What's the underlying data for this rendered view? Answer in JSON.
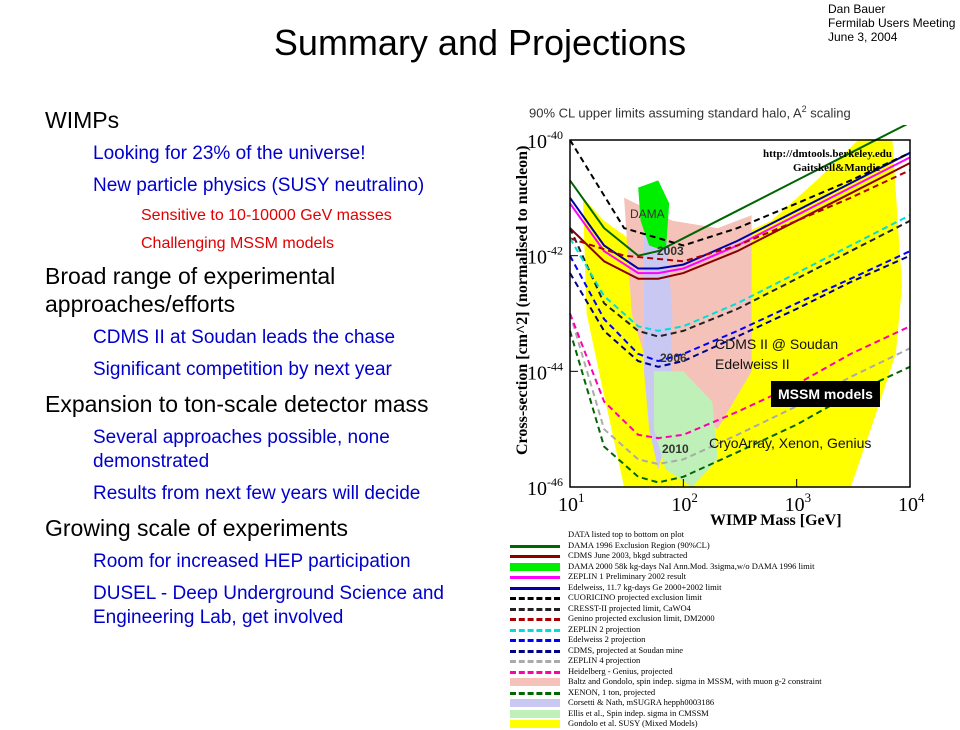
{
  "corner": {
    "author": "Dan Bauer",
    "meeting": "Fermilab Users Meeting",
    "date": "June 3, 2004"
  },
  "slide_title": "Summary and Projections",
  "bullets": [
    {
      "level": 1,
      "text": "WIMPs"
    },
    {
      "level": 2,
      "text": "Looking for 23% of the universe!"
    },
    {
      "level": 2,
      "text": "New particle physics (SUSY neutralino)"
    },
    {
      "level": 3,
      "text": "Sensitive to 10-10000 GeV masses"
    },
    {
      "level": 3,
      "text": "Challenging MSSM models"
    },
    {
      "level": 1,
      "text": "Broad range of experimental approaches/efforts"
    },
    {
      "level": 2,
      "text": "CDMS II at Soudan leads the chase"
    },
    {
      "level": 2,
      "text": "Significant competition by next year"
    },
    {
      "level": 1,
      "text": "Expansion to ton-scale detector mass"
    },
    {
      "level": 2,
      "text": "Several approaches possible, none demonstrated"
    },
    {
      "level": 2,
      "text": "Results from next few years will decide"
    },
    {
      "level": 1,
      "text": "Growing scale of experiments"
    },
    {
      "level": 2,
      "text": "Room for increased HEP participation"
    },
    {
      "level": 2,
      "text": "DUSEL - Deep Underground Science and Engineering Lab, get involved"
    }
  ],
  "plot_caption": {
    "pre": "90% CL upper limits assuming standard halo, A",
    "sup": "2",
    "post": " scaling"
  },
  "chart_data": {
    "type": "line",
    "xlabel": "WIMP Mass [GeV]",
    "ylabel": "Cross-section [cm^2] (normalised to nucleon)",
    "x_scale": "log",
    "y_scale": "log",
    "xlim": [
      10,
      10000
    ],
    "ylim": [
      1e-46,
      1e-40
    ],
    "x_ticks": [
      {
        "base": "10",
        "exp": "1"
      },
      {
        "base": "10",
        "exp": "2"
      },
      {
        "base": "10",
        "exp": "3"
      },
      {
        "base": "10",
        "exp": "4"
      }
    ],
    "y_ticks": [
      {
        "base": "10",
        "exp": "-40"
      },
      {
        "base": "10",
        "exp": "-42"
      },
      {
        "base": "10",
        "exp": "-44"
      },
      {
        "base": "10",
        "exp": "-46"
      }
    ],
    "url_lines": [
      "http://dmtools.berkeley.edu",
      "Gaitskell&Mandic"
    ],
    "annotations": {
      "dama": "DAMA",
      "y2003": "2003",
      "y2006": "2006",
      "y2010": "2010",
      "cdms1": "CDMS II @ Soudan",
      "cdms2": "Edelweiss II",
      "mssm": "MSSM models",
      "cryo": "CryoArray, Xenon, Genius"
    },
    "series": [
      {
        "name": "DAMA 1996 Exclusion Region (90%CL)",
        "color": "#006600",
        "style": "solid",
        "x": [
          10,
          20,
          40,
          60,
          100,
          300,
          1000,
          3000,
          10000
        ],
        "y": [
          2e-41,
          3e-42,
          1e-42,
          1.2e-42,
          2e-42,
          6e-42,
          2e-41,
          6e-41,
          2e-40
        ]
      },
      {
        "name": "CDMS June 2003, bkgd subtracted",
        "color": "#880000",
        "style": "solid",
        "x": [
          10,
          20,
          40,
          60,
          100,
          300,
          1000,
          3000,
          10000
        ],
        "y": [
          3e-42,
          8e-43,
          4e-43,
          4e-43,
          5e-43,
          1.2e-42,
          4e-42,
          1.2e-41,
          4e-41
        ]
      },
      {
        "name": "ZEPLIN 1 Preliminary 2002 result",
        "color": "#ff00ff",
        "style": "solid",
        "x": [
          10,
          20,
          40,
          60,
          100,
          300,
          1000,
          3000,
          10000
        ],
        "y": [
          8e-42,
          1.2e-42,
          5e-43,
          5e-43,
          6e-43,
          1.5e-42,
          5e-42,
          1.5e-41,
          5e-41
        ]
      },
      {
        "name": "Edelweiss, 11.7 kg-days Ge 2000+2002 limit",
        "color": "#0000aa",
        "style": "solid",
        "x": [
          10,
          20,
          40,
          60,
          100,
          300,
          1000,
          3000,
          10000
        ],
        "y": [
          1e-41,
          1.5e-42,
          6e-43,
          6e-43,
          7e-43,
          1.8e-42,
          6e-42,
          1.8e-41,
          6e-41
        ]
      },
      {
        "name": "CUORICINO projected exclusion limit",
        "color": "#000000",
        "style": "dashed",
        "x": [
          10,
          30,
          100,
          300,
          1000,
          3000,
          10000
        ],
        "y": [
          1e-40,
          3e-42,
          1.5e-42,
          3e-42,
          8e-42,
          2e-41,
          6e-41
        ]
      },
      {
        "name": "CRESST-II projected limit, CaWO4",
        "color": "#222222",
        "style": "dashed",
        "x": [
          10,
          20,
          40,
          60,
          100,
          300,
          1000,
          3000,
          10000
        ],
        "y": [
          3e-42,
          1.5e-43,
          5e-44,
          4e-44,
          5e-44,
          1.2e-43,
          4e-43,
          1.2e-42,
          4e-42
        ]
      },
      {
        "name": "Genino projected exclusion limit, DM2000",
        "color": "#aa0000",
        "style": "dashed",
        "x": [
          10,
          30,
          100,
          300,
          1000,
          3000,
          10000
        ],
        "y": [
          2e-42,
          1e-42,
          8e-43,
          1.5e-42,
          4e-42,
          1e-41,
          3e-41
        ]
      },
      {
        "name": "ZEPLIN 2 projection",
        "color": "#00dddd",
        "style": "dashed",
        "x": [
          10,
          20,
          40,
          60,
          100,
          300,
          1000,
          3000,
          10000
        ],
        "y": [
          2e-42,
          2e-43,
          6e-44,
          5e-44,
          6e-44,
          1.5e-43,
          5e-43,
          1.5e-42,
          5e-42
        ]
      },
      {
        "name": "Edelweiss 2 projection",
        "color": "#0000ff",
        "style": "dashed",
        "x": [
          10,
          20,
          40,
          60,
          100,
          300,
          1000,
          3000,
          10000
        ],
        "y": [
          1e-42,
          8e-44,
          2e-44,
          1.5e-44,
          2e-44,
          5e-44,
          1.5e-43,
          4e-43,
          1.2e-42
        ]
      },
      {
        "name": "CDMS, projected at Soudan mine",
        "color": "#000088",
        "style": "dashed",
        "x": [
          10,
          20,
          40,
          60,
          100,
          300,
          1000,
          3000,
          10000
        ],
        "y": [
          5e-43,
          5e-44,
          1.5e-44,
          1.2e-44,
          1.5e-44,
          4e-44,
          1.2e-43,
          3.5e-43,
          1e-42
        ]
      },
      {
        "name": "ZEPLIN 4 projection",
        "color": "#aaaaaa",
        "style": "dashed",
        "x": [
          10,
          20,
          40,
          60,
          100,
          300,
          1000,
          3000,
          10000
        ],
        "y": [
          1e-43,
          1e-45,
          3e-46,
          2.5e-46,
          3e-46,
          8e-46,
          2.5e-45,
          8e-45,
          2.5e-44
        ]
      },
      {
        "name": "Heidelberg - Genius, projected",
        "color": "#ff00aa",
        "style": "dashed",
        "x": [
          10,
          20,
          40,
          60,
          100,
          300,
          1000,
          3000,
          10000
        ],
        "y": [
          1e-43,
          3e-45,
          8e-46,
          7e-46,
          8e-46,
          2e-45,
          6e-45,
          2e-44,
          6e-44
        ]
      },
      {
        "name": "XENON, 1 ton, projected",
        "color": "#006600",
        "style": "dashed",
        "x": [
          10,
          20,
          40,
          60,
          100,
          300,
          1000,
          3000,
          10000
        ],
        "y": [
          5e-44,
          5e-46,
          1.5e-46,
          1.2e-46,
          1.5e-46,
          4e-46,
          1.2e-45,
          4e-45,
          1.2e-44
        ]
      }
    ],
    "regions": [
      {
        "name": "Gondolo et al. SUSY (Mixed Models)",
        "color": "#ffff00"
      },
      {
        "name": "Baltz and Gondolo, spin indep. sigma in MSSM, with muon g-2 constraint",
        "color": "#f4c2b8"
      },
      {
        "name": "Corsetti & Nath, mSUGRA hepph0003186",
        "color": "#c8c8f2"
      },
      {
        "name": "Ellis et al., Spin indep. sigma in CMSSM",
        "color": "#bff0b8"
      },
      {
        "name": "DAMA 2000 58k kg-days NaI Ann.Mod. 3sigma,w/o DAMA 1996 limit",
        "color": "#00ee00"
      }
    ]
  },
  "legend": [
    {
      "text": "DATA listed top to bottom on plot",
      "swatch": "none",
      "color": "#000000"
    },
    {
      "text": "DAMA 1996 Exclusion Region (90%CL)",
      "swatch": "solid",
      "color": "#006600"
    },
    {
      "text": "CDMS June 2003, bkgd subtracted",
      "swatch": "solid",
      "color": "#880000"
    },
    {
      "text": "DAMA 2000 58k kg-days NaI Ann.Mod. 3sigma,w/o DAMA 1996 limit",
      "swatch": "fill",
      "color": "#00ee00"
    },
    {
      "text": "ZEPLIN 1 Preliminary 2002 result",
      "swatch": "solid",
      "color": "#ff00ff"
    },
    {
      "text": "Edelweiss, 11.7 kg-days Ge 2000+2002 limit",
      "swatch": "solid",
      "color": "#0000aa"
    },
    {
      "text": "CUORICINO projected exclusion limit",
      "swatch": "dashed",
      "color": "#000000"
    },
    {
      "text": "CRESST-II projected limit, CaWO4",
      "swatch": "dashed",
      "color": "#222222"
    },
    {
      "text": "Genino projected exclusion limit, DM2000",
      "swatch": "dashed",
      "color": "#aa0000"
    },
    {
      "text": "ZEPLIN 2 projection",
      "swatch": "dashed",
      "color": "#00dddd"
    },
    {
      "text": "Edelweiss 2 projection",
      "swatch": "dashed",
      "color": "#0000ff"
    },
    {
      "text": "CDMS, projected at Soudan mine",
      "swatch": "dashed",
      "color": "#000088"
    },
    {
      "text": "ZEPLIN 4 projection",
      "swatch": "dashed",
      "color": "#aaaaaa"
    },
    {
      "text": "Heidelberg - Genius, projected",
      "swatch": "dashed",
      "color": "#ff00aa"
    },
    {
      "text": "Baltz and Gondolo, spin indep. sigma in MSSM, with muon g-2 constraint",
      "swatch": "fill",
      "color": "#f4c2b8"
    },
    {
      "text": "XENON, 1 ton, projected",
      "swatch": "dashed",
      "color": "#006600"
    },
    {
      "text": "Corsetti & Nath, mSUGRA hepph0003186",
      "swatch": "fill",
      "color": "#c8c8f2"
    },
    {
      "text": "Ellis et al., Spin indep. sigma in CMSSM",
      "swatch": "fill",
      "color": "#bff0b8"
    },
    {
      "text": "Gondolo et al. SUSY (Mixed Models)",
      "swatch": "fill",
      "color": "#ffff00"
    }
  ]
}
